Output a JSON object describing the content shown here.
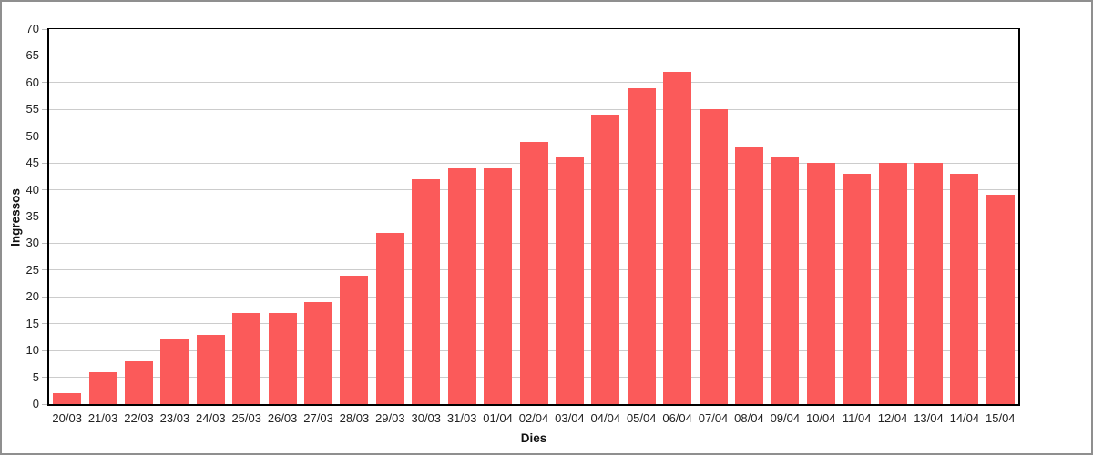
{
  "chart_data": {
    "type": "bar",
    "title": "",
    "xlabel": "Dies",
    "ylabel": "Ingressos",
    "categories": [
      "20/03",
      "21/03",
      "22/03",
      "23/03",
      "24/03",
      "25/03",
      "26/03",
      "27/03",
      "28/03",
      "29/03",
      "30/03",
      "31/03",
      "01/04",
      "02/04",
      "03/04",
      "04/04",
      "05/04",
      "06/04",
      "07/04",
      "08/04",
      "09/04",
      "10/04",
      "11/04",
      "12/04",
      "13/04",
      "14/04",
      "15/04"
    ],
    "values": [
      2,
      6,
      8,
      12,
      13,
      17,
      17,
      19,
      24,
      32,
      42,
      44,
      44,
      49,
      46,
      54,
      59,
      62,
      55,
      48,
      46,
      45,
      43,
      45,
      45,
      43,
      39
    ],
    "ylim": [
      0,
      70
    ],
    "ytick_step": 5,
    "grid": true,
    "legend": "none",
    "bar_color": "#fb5a5a",
    "gridline_color": "#cccccc",
    "axis_line_color": "#000000",
    "tick_label_color": "#222222",
    "outer_border_color": "#8f8f8f"
  }
}
